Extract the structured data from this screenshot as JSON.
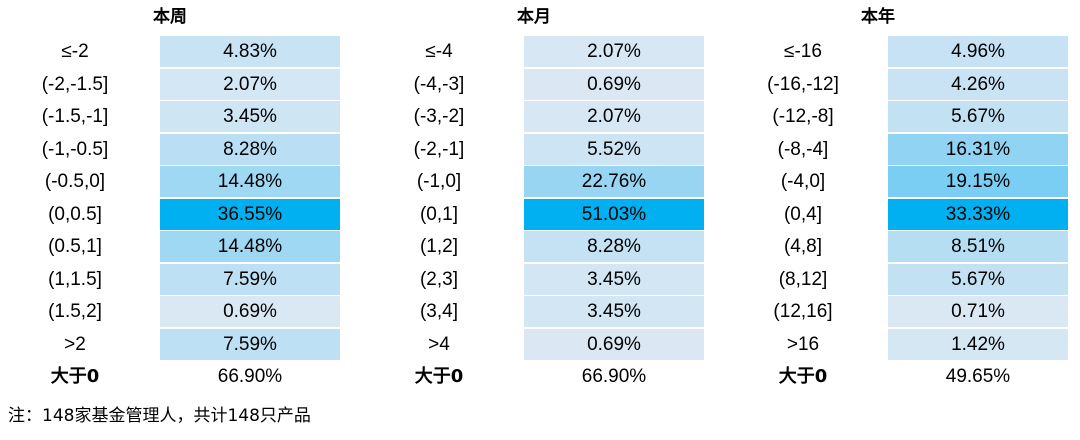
{
  "chart_data": [
    {
      "type": "table",
      "title": "本周",
      "categories": [
        "≤-2",
        "(-2,-1.5]",
        "(-1.5,-1]",
        "(-1,-0.5]",
        "(-0.5,0]",
        "(0,0.5]",
        "(0.5,1]",
        "(1,1.5]",
        "(1.5,2]",
        ">2"
      ],
      "values": [
        4.83,
        2.07,
        3.45,
        8.28,
        14.48,
        36.55,
        14.48,
        7.59,
        0.69,
        7.59
      ],
      "value_labels": [
        "4.83%",
        "2.07%",
        "3.45%",
        "8.28%",
        "14.48%",
        "36.55%",
        "14.48%",
        "7.59%",
        "0.69%",
        "7.59%"
      ],
      "total_label": "大于0",
      "total_value": "66.90%"
    },
    {
      "type": "table",
      "title": "本月",
      "categories": [
        "≤-4",
        "(-4,-3]",
        "(-3,-2]",
        "(-2,-1]",
        "(-1,0]",
        "(0,1]",
        "(1,2]",
        "(2,3]",
        "(3,4]",
        ">4"
      ],
      "values": [
        2.07,
        0.69,
        2.07,
        5.52,
        22.76,
        51.03,
        8.28,
        3.45,
        3.45,
        0.69
      ],
      "value_labels": [
        "2.07%",
        "0.69%",
        "2.07%",
        "5.52%",
        "22.76%",
        "51.03%",
        "8.28%",
        "3.45%",
        "3.45%",
        "0.69%"
      ],
      "total_label": "大于0",
      "total_value": "66.90%"
    },
    {
      "type": "table",
      "title": "本年",
      "categories": [
        "≤-16",
        "(-16,-12]",
        "(-12,-8]",
        "(-8,-4]",
        "(-4,0]",
        "(0,4]",
        "(4,8]",
        "(8,12]",
        "(12,16]",
        ">16"
      ],
      "values": [
        4.96,
        4.26,
        5.67,
        16.31,
        19.15,
        33.33,
        8.51,
        5.67,
        0.71,
        1.42
      ],
      "value_labels": [
        "4.96%",
        "4.26%",
        "5.67%",
        "16.31%",
        "19.15%",
        "33.33%",
        "8.51%",
        "5.67%",
        "0.71%",
        "1.42%"
      ],
      "total_label": "大于0",
      "total_value": "49.65%"
    }
  ],
  "colors": {
    "heat_low": "#dde9f4",
    "heat_mid": "#8fd3f3",
    "heat_high": "#00b0f0"
  },
  "note": "注：148家基金管理人，共计148只产品"
}
